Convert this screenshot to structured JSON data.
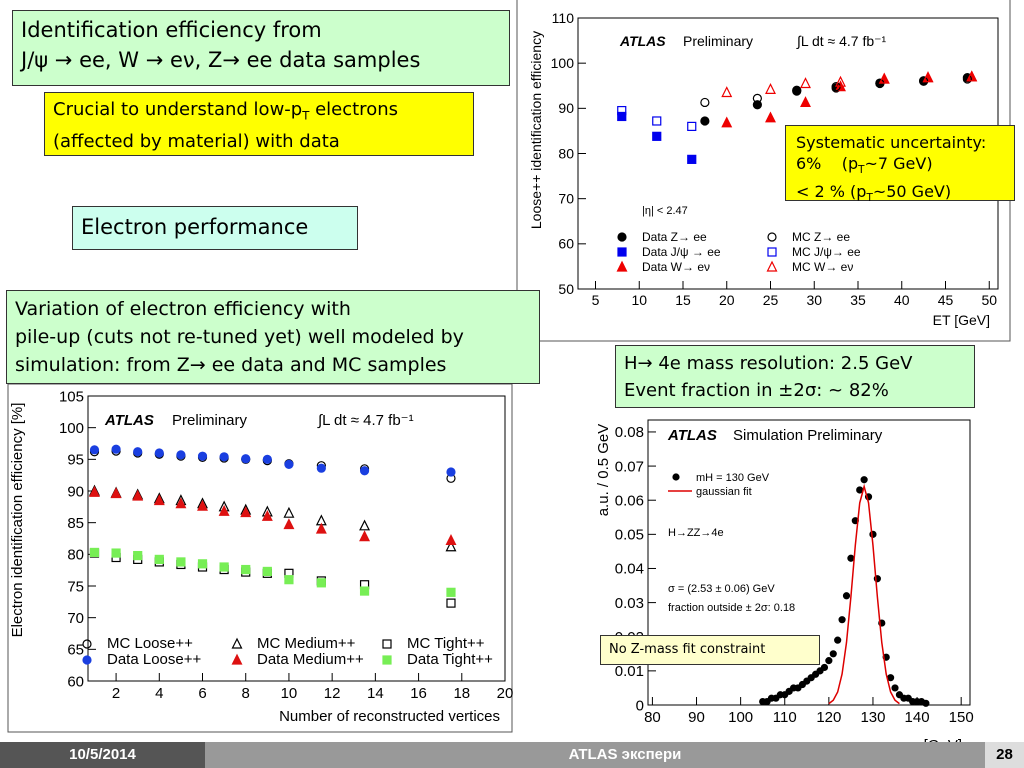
{
  "slide": {
    "heading": [
      [
        "Identification efficiency from"
      ],
      [
        "J/ψ → ee, W → eν, Z→ ee data samples"
      ]
    ],
    "note": [
      [
        "Crucial to understand low-p",
        {
          "sub": "T"
        },
        " electrons"
      ],
      [
        "(affected by material) with data"
      ]
    ],
    "section": [
      [
        "Electron performance"
      ]
    ],
    "pileup": [
      [
        "Variation of electron efficiency with"
      ],
      [
        "pile-up (cuts not re-tuned yet) well modeled by"
      ],
      [
        "simulation: from Z→ ee data and MC samples"
      ]
    ],
    "systematic": [
      [
        "Systematic uncertainty:"
      ],
      [
        "6%    (p",
        {
          "sub": "T"
        },
        "~7 GeV)"
      ],
      [
        "< 2 % (p",
        {
          "sub": "T"
        },
        "~50 GeV)"
      ]
    ],
    "higgs": [
      [
        "H→ 4e mass resolution: 2.5 GeV"
      ],
      [
        "Event fraction in ±2σ: ~ 82%"
      ]
    ],
    "constraint": [
      [
        "No Z-mass fit constraint"
      ]
    ],
    "footer": {
      "date": "10/5/2014",
      "center": "ATLAS экспери",
      "page": "28"
    }
  },
  "chart_data": [
    {
      "type": "scatter",
      "x_label": "ET [GeV]",
      "y_label": "Loose++ identification efficiency",
      "annotations": [
        "ATLAS",
        "Preliminary",
        "∫L dt ≈ 4.7 fb⁻¹",
        "|η| < 2.47"
      ],
      "xlim": [
        3,
        51
      ],
      "ylim": [
        50,
        110
      ],
      "xticks": [
        5,
        10,
        15,
        20,
        25,
        30,
        35,
        40,
        45,
        50
      ],
      "yticks": [
        50,
        60,
        70,
        80,
        90,
        100,
        110
      ],
      "series": [
        {
          "name": "Data Z→ ee",
          "color": "#000000",
          "marker": "circle",
          "filled": true,
          "x": [
            17.5,
            23.5,
            28,
            32.5,
            37.5,
            42.5,
            47.5
          ],
          "values": [
            87.2,
            90.8,
            93.8,
            94.5,
            95.6,
            96.1,
            96.8
          ]
        },
        {
          "name": "Data J/ψ → ee",
          "color": "#0000ee",
          "marker": "square",
          "filled": true,
          "x": [
            8,
            12,
            16
          ],
          "values": [
            88.2,
            83.8,
            78.7
          ]
        },
        {
          "name": "Data W→ eν",
          "color": "#ee0000",
          "marker": "triangle",
          "filled": true,
          "x": [
            20,
            25,
            29,
            33,
            38,
            43,
            48
          ],
          "values": [
            86.8,
            87.9,
            91.3,
            94.8,
            96.5,
            96.8,
            97
          ]
        },
        {
          "name": "MC Z→ ee",
          "color": "#000000",
          "marker": "circle",
          "filled": false,
          "x": [
            17.5,
            23.5,
            28,
            32.5,
            37.5,
            42.5,
            47.5
          ],
          "values": [
            91.3,
            92.2,
            94,
            94.8,
            95.5,
            96,
            96.5
          ]
        },
        {
          "name": "MC J/ψ→ ee",
          "color": "#0000ee",
          "marker": "square",
          "filled": false,
          "x": [
            8,
            12,
            16
          ],
          "values": [
            89.5,
            87.2,
            86
          ]
        },
        {
          "name": "MC W→ eν",
          "color": "#ee0000",
          "marker": "triangle",
          "filled": false,
          "x": [
            20,
            25,
            29,
            33,
            38,
            43,
            48
          ],
          "values": [
            93.5,
            94.2,
            95.5,
            95.8,
            96.5,
            96.8,
            97
          ]
        }
      ]
    },
    {
      "type": "scatter",
      "x_label": "Number of reconstructed vertices",
      "y_label": "Electron identification efficiency [%]",
      "annotations": [
        "ATLAS",
        "Preliminary",
        "∫L dt ≈ 4.7 fb⁻¹"
      ],
      "xlim": [
        0.7,
        20
      ],
      "ylim": [
        60,
        105
      ],
      "xticks": [
        2,
        4,
        6,
        8,
        10,
        12,
        14,
        16,
        18,
        20
      ],
      "yticks": [
        60,
        65,
        70,
        75,
        80,
        85,
        90,
        95,
        100,
        105
      ],
      "x": [
        1,
        2,
        3,
        4,
        5,
        6,
        7,
        8,
        9,
        10,
        11.5,
        13.5,
        17.5
      ],
      "series": [
        {
          "name": "MC Loose++",
          "color": "#000000",
          "marker": "circle",
          "filled": false,
          "values": [
            96.2,
            96.3,
            96,
            95.8,
            95.5,
            95.3,
            95.2,
            95,
            94.8,
            94.3,
            94,
            93.5,
            92
          ]
        },
        {
          "name": "Data Loose++",
          "color": "#1a3fe0",
          "marker": "circle",
          "filled": true,
          "values": [
            96.5,
            96.6,
            96.2,
            96,
            95.7,
            95.5,
            95.4,
            95.1,
            95,
            94.2,
            93.6,
            93.2,
            93
          ]
        },
        {
          "name": "MC Medium++",
          "color": "#000000",
          "marker": "triangle",
          "filled": false,
          "values": [
            90,
            89.7,
            89.4,
            88.8,
            88.5,
            88,
            87.5,
            87,
            86.7,
            86.5,
            85.3,
            84.5,
            81.2
          ]
        },
        {
          "name": "Data Medium++",
          "color": "#dd1111",
          "marker": "triangle",
          "filled": true,
          "values": [
            89.8,
            89.6,
            89.2,
            88.5,
            88,
            87.6,
            86.8,
            86.6,
            86,
            84.7,
            84,
            82.8,
            82.2
          ]
        },
        {
          "name": "MC Tight++",
          "color": "#000000",
          "marker": "square",
          "filled": false,
          "values": [
            80.2,
            79.5,
            79.2,
            78.8,
            78.4,
            78,
            77.6,
            77.2,
            77,
            77,
            75.8,
            75.2,
            72.3
          ]
        },
        {
          "name": "Data Tight++",
          "color": "#77ee55",
          "marker": "square",
          "filled": true,
          "values": [
            80.3,
            80.2,
            79.8,
            79.2,
            78.8,
            78.5,
            78,
            77.6,
            77.3,
            76,
            75.5,
            74.2,
            74
          ]
        }
      ]
    },
    {
      "type": "scatter",
      "x_label": "meeee [GeV]",
      "y_label": "a.u. / 0.5 GeV",
      "annotations": [
        "ATLAS",
        "Simulation Preliminary",
        "H→ZZ→4e",
        "σ = (2.53 ± 0.06) GeV",
        "fraction outside ± 2σ: 0.18"
      ],
      "xlim": [
        79,
        152
      ],
      "ylim": [
        0,
        0.0835
      ],
      "xticks": [
        80,
        90,
        100,
        110,
        120,
        130,
        140,
        150
      ],
      "yticks": [
        0,
        0.01,
        0.02,
        0.03,
        0.04,
        0.05,
        0.06,
        0.07,
        0.08
      ],
      "series": [
        {
          "name": "mH = 130 GeV",
          "color": "#000000",
          "marker": "circle",
          "filled": true,
          "x": [
            105,
            106,
            107,
            108,
            109,
            110,
            111,
            112,
            113,
            114,
            115,
            116,
            117,
            118,
            119,
            120,
            121,
            122,
            123,
            124,
            125,
            126,
            127,
            128,
            129,
            130,
            131,
            132,
            133,
            134,
            135,
            136,
            137,
            138,
            139,
            140,
            141,
            142
          ],
          "values": [
            0.001,
            0.001,
            0.002,
            0.002,
            0.003,
            0.003,
            0.004,
            0.005,
            0.005,
            0.006,
            0.007,
            0.008,
            0.009,
            0.01,
            0.011,
            0.013,
            0.015,
            0.019,
            0.025,
            0.032,
            0.043,
            0.054,
            0.063,
            0.066,
            0.061,
            0.05,
            0.037,
            0.024,
            0.014,
            0.008,
            0.005,
            0.003,
            0.002,
            0.002,
            0.001,
            0.001,
            0.001,
            0.0005
          ]
        },
        {
          "name": "gaussian fit",
          "color": "#dd0000",
          "marker": "line",
          "x": [
            120,
            121,
            122,
            123,
            124,
            125,
            126,
            127,
            128,
            129,
            130,
            131,
            132,
            133,
            134,
            135,
            136
          ],
          "values": [
            0.0004,
            0.0014,
            0.0038,
            0.0091,
            0.0183,
            0.0317,
            0.0468,
            0.0592,
            0.064,
            0.0592,
            0.0468,
            0.0317,
            0.0183,
            0.0091,
            0.0038,
            0.0014,
            0.0004
          ]
        }
      ]
    }
  ]
}
